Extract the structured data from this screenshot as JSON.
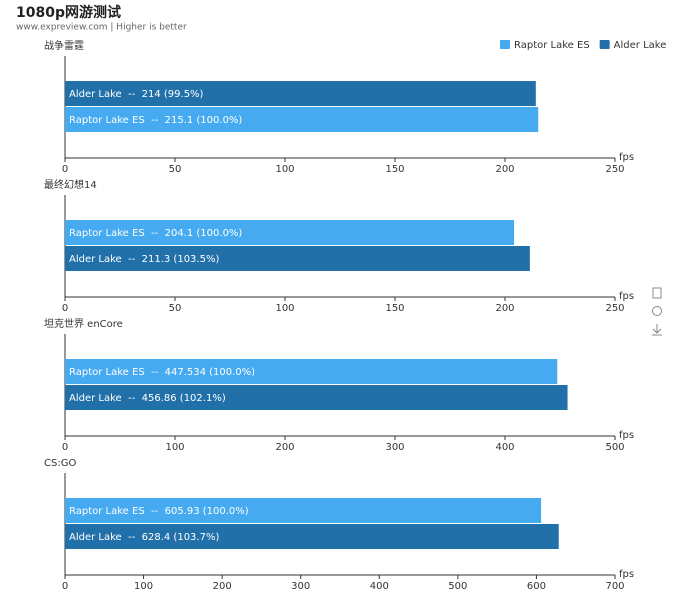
{
  "title": "1080p网游测试",
  "subtitle": "www.expreview.com | Higher is better",
  "chart_data": [
    {
      "type": "bar",
      "orientation": "horizontal",
      "title": "战争雷霆",
      "x_label": "fps",
      "xlim": [
        0,
        250
      ],
      "xticks": [
        0,
        50,
        100,
        150,
        200,
        250
      ],
      "series": [
        {
          "name": "Alder Lake",
          "color": "#2170aa",
          "values": [
            214
          ],
          "value_labels": [
            "Alder Lake  --  214 (99.5%)"
          ]
        },
        {
          "name": "Raptor Lake ES",
          "color": "#45aaf0",
          "values": [
            215.1
          ],
          "value_labels": [
            "Raptor Lake ES  --  215.1 (100.0%)"
          ]
        }
      ]
    },
    {
      "type": "bar",
      "orientation": "horizontal",
      "title": "最终幻想14",
      "x_label": "fps",
      "xlim": [
        0,
        250
      ],
      "xticks": [
        0,
        50,
        100,
        150,
        200,
        250
      ],
      "series": [
        {
          "name": "Raptor Lake ES",
          "color": "#45aaf0",
          "values": [
            204.1
          ],
          "value_labels": [
            "Raptor Lake ES  --  204.1 (100.0%)"
          ]
        },
        {
          "name": "Alder Lake",
          "color": "#2170aa",
          "values": [
            211.3
          ],
          "value_labels": [
            "Alder Lake  --  211.3 (103.5%)"
          ]
        }
      ]
    },
    {
      "type": "bar",
      "orientation": "horizontal",
      "title": "坦克世界 enCore",
      "x_label": "fps",
      "xlim": [
        0,
        500
      ],
      "xticks": [
        0,
        100,
        200,
        300,
        400,
        500
      ],
      "series": [
        {
          "name": "Raptor Lake ES",
          "color": "#45aaf0",
          "values": [
            447.534
          ],
          "value_labels": [
            "Raptor Lake ES  --  447.534 (100.0%)"
          ]
        },
        {
          "name": "Alder Lake",
          "color": "#2170aa",
          "values": [
            456.86
          ],
          "value_labels": [
            "Alder Lake  --  456.86 (102.1%)"
          ]
        }
      ]
    },
    {
      "type": "bar",
      "orientation": "horizontal",
      "title": "CS:GO",
      "x_label": "fps",
      "xlim": [
        0,
        700
      ],
      "xticks": [
        0,
        100,
        200,
        300,
        400,
        500,
        600,
        700
      ],
      "series": [
        {
          "name": "Raptor Lake ES",
          "color": "#45aaf0",
          "values": [
            605.93
          ],
          "value_labels": [
            "Raptor Lake ES  --  605.93 (100.0%)"
          ]
        },
        {
          "name": "Alder Lake",
          "color": "#2170aa",
          "values": [
            628.4
          ],
          "value_labels": [
            "Alder Lake  --  628.4 (103.7%)"
          ]
        }
      ]
    }
  ]
}
